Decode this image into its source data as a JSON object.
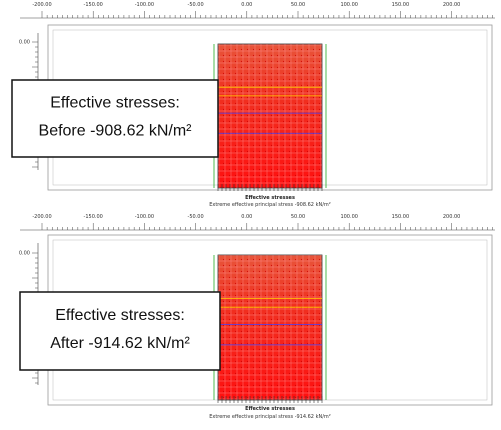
{
  "panels": [
    {
      "ruler_labels": [
        "-200.00",
        "-150.00",
        "-100.00",
        "-50.00",
        "0.00",
        "50.00",
        "100.00",
        "150.00",
        "200.00"
      ],
      "y_label": "0.00",
      "caption": "Effective stresses",
      "subtitle": "Extreme effective principal stress -908.62 kN/m²",
      "callout": {
        "line1": "Effective stresses:",
        "line2": "Before -908.62 kN/m²"
      }
    },
    {
      "ruler_labels": [
        "-200.00",
        "-150.00",
        "-100.00",
        "-50.00",
        "0.00",
        "50.00",
        "100.00",
        "150.00",
        "200.00"
      ],
      "y_label": "0.00",
      "caption": "Effective stresses",
      "subtitle": "Extreme effective principal stress -914.62 kN/m²",
      "callout": {
        "line1": "Effective stresses:",
        "line2": "After -914.62 kN/m²"
      }
    }
  ]
}
